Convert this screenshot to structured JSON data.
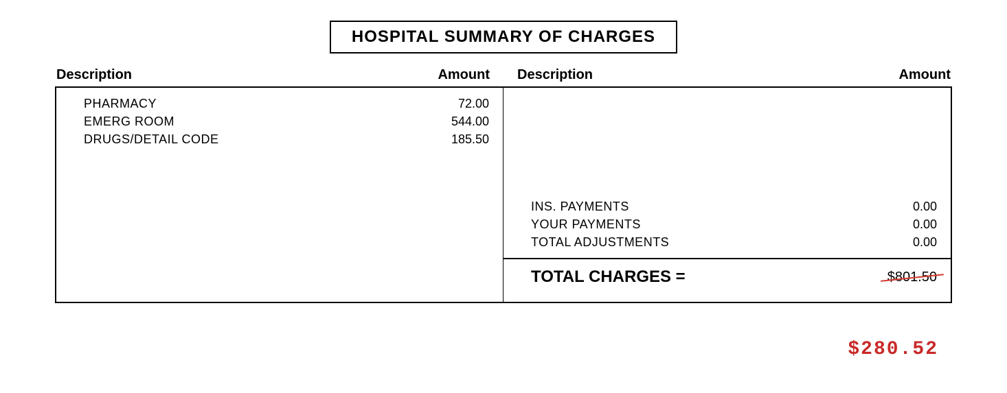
{
  "title": "HOSPITAL SUMMARY OF CHARGES",
  "headers": {
    "desc_left": "Description",
    "amount_left": "Amount",
    "desc_right": "Description",
    "amount_right": "Amount"
  },
  "charges": [
    {
      "desc": "PHARMACY",
      "amount": "72.00"
    },
    {
      "desc": "EMERG ROOM",
      "amount": "544.00"
    },
    {
      "desc": "DRUGS/DETAIL CODE",
      "amount": "185.50"
    }
  ],
  "payments": [
    {
      "desc": "INS. PAYMENTS",
      "amount": "0.00"
    },
    {
      "desc": "YOUR PAYMENTS",
      "amount": "0.00"
    },
    {
      "desc": "TOTAL ADJUSTMENTS",
      "amount": "0.00"
    }
  ],
  "total": {
    "label": "TOTAL CHARGES =",
    "amount": "$801.50"
  },
  "handwritten_amount": "$280.52",
  "colors": {
    "text": "#000000",
    "background": "#ffffff",
    "strike": "#d43a2f",
    "handwritten": "#c82a28",
    "border": "#000000"
  },
  "fonts": {
    "main": "Arial",
    "handwritten": "Courier New",
    "title_size": 24,
    "header_size": 20,
    "body_size": 18,
    "total_size": 24
  }
}
